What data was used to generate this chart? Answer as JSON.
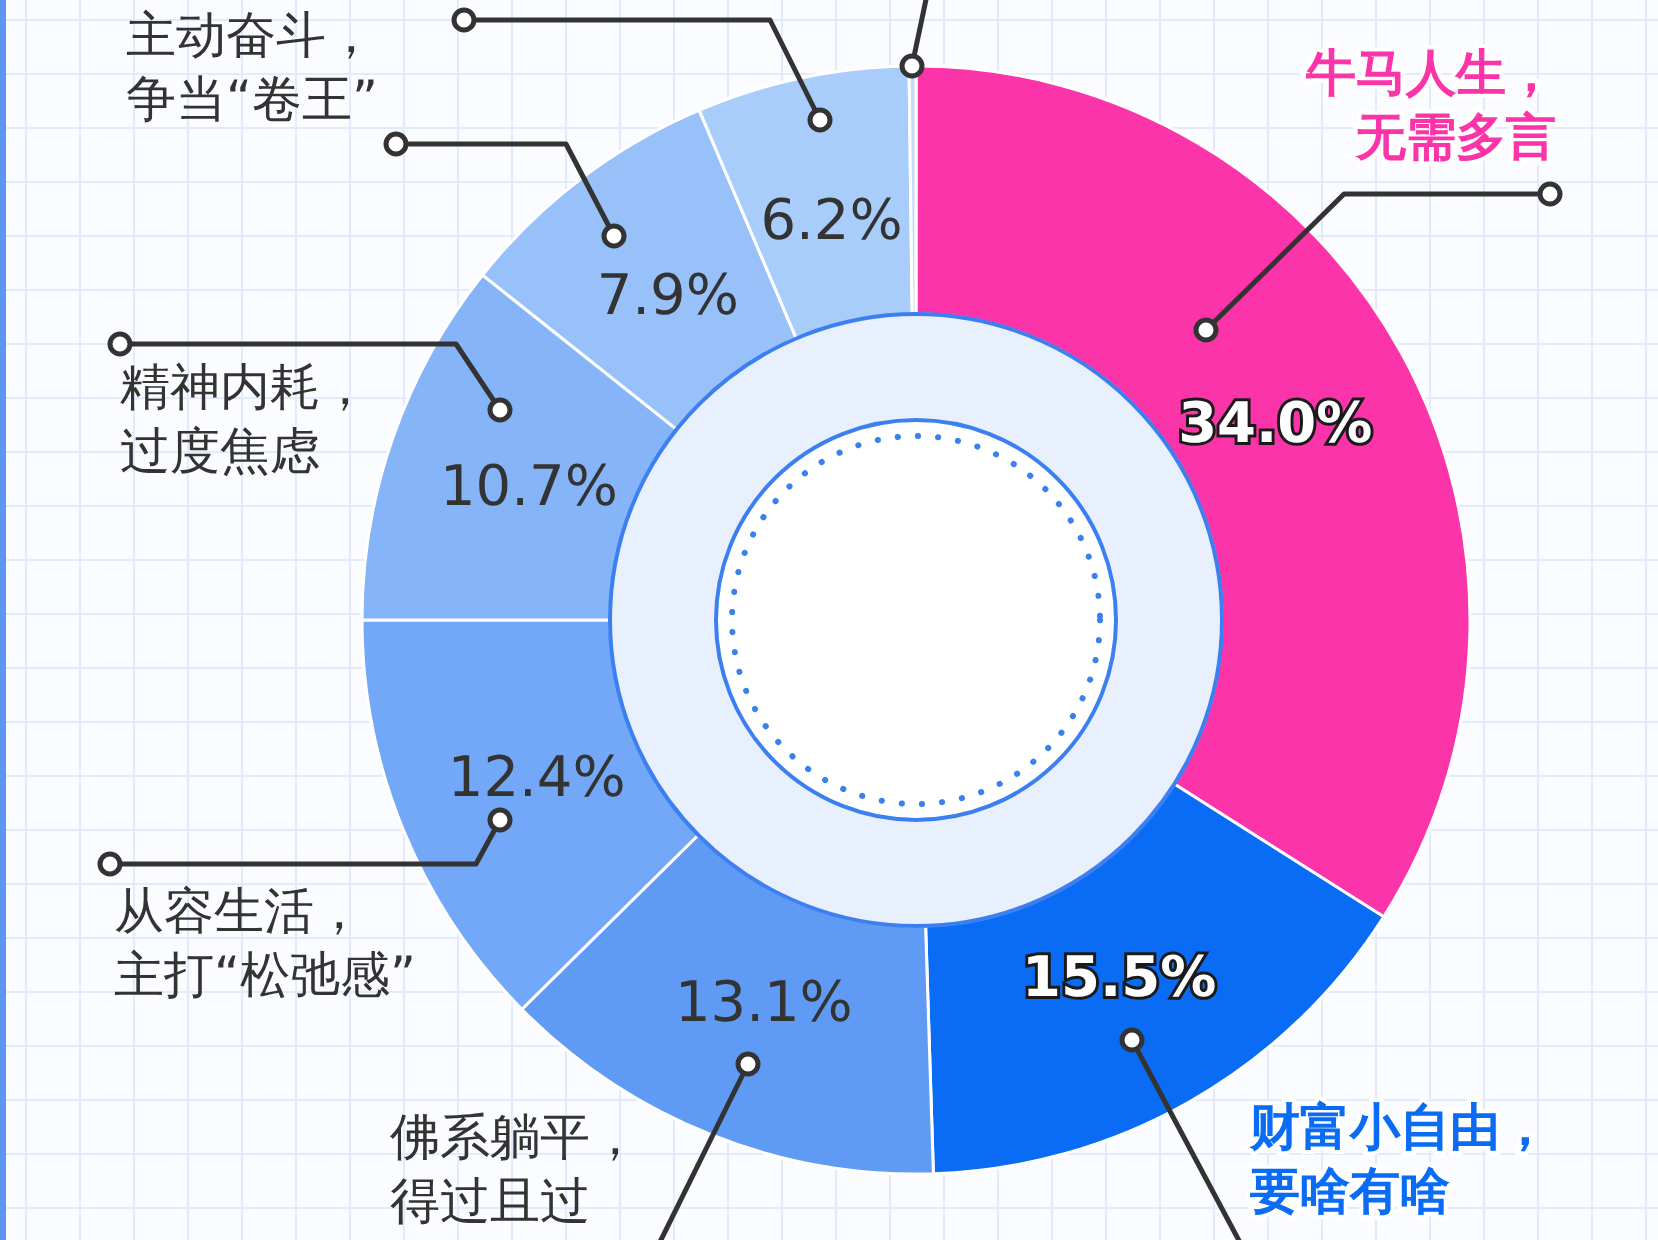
{
  "chart_data": {
    "type": "donut",
    "categories": [
      "牛马人生，无需多言",
      "财富小自由，要啥有啥",
      "佛系躺平，得过且过",
      "从容生活，主打“松弛感”",
      "精神内耗，过度焦虑",
      "主动奋斗，争当“卷王”",
      null,
      null
    ],
    "values": [
      34.0,
      15.5,
      13.1,
      12.4,
      10.7,
      7.9,
      6.2,
      0.2
    ],
    "colors": [
      "#fc34a9",
      "#0a6cf5",
      "#5f9bf5",
      "#72a8f7",
      "#86b4f8",
      "#98c1fa",
      "#a9cdfb",
      "#c4dcfc"
    ],
    "value_labels": [
      "34.0%",
      "15.5%",
      "13.1%",
      "12.4%",
      "10.7%",
      "7.9%",
      "6.2%",
      null
    ],
    "legend": false
  }
}
